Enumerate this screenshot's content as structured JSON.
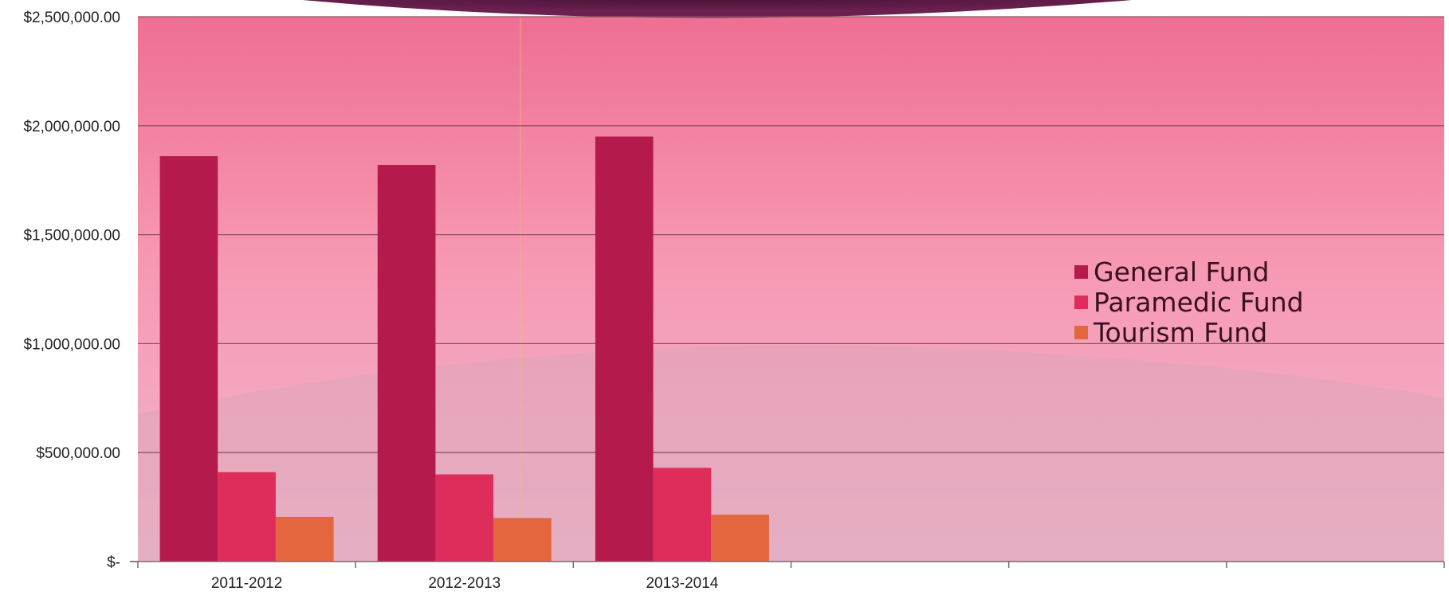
{
  "chart_data": {
    "type": "bar",
    "title": "",
    "xlabel": "",
    "ylabel": "",
    "categories": [
      "2011-2012",
      "2012-2013",
      "2013-2014",
      "",
      "",
      ""
    ],
    "series": [
      {
        "name": "General Fund",
        "values": [
          1860000,
          1820000,
          1950000,
          null,
          null,
          null
        ],
        "color": "#b51a4c"
      },
      {
        "name": "Paramedic Fund",
        "values": [
          410000,
          400000,
          430000,
          null,
          null,
          null
        ],
        "color": "#de2d5a"
      },
      {
        "name": "Tourism Fund",
        "values": [
          205000,
          200000,
          215000,
          null,
          null,
          null
        ],
        "color": "#e4663f"
      }
    ],
    "ylim": [
      0,
      2500000
    ],
    "y_ticks": [
      0,
      500000,
      1000000,
      1500000,
      2000000,
      2500000
    ],
    "y_tick_labels": [
      "$-",
      "$500,000.00",
      "$1,000,000.00",
      "$1,500,000.00",
      "$2,000,000.00",
      "$2,500,000.00"
    ],
    "grid": true,
    "legend_position": "right",
    "background_color": "#f48cab",
    "gridline_color": "#8a5566",
    "axis_color": "#7a6a70"
  }
}
